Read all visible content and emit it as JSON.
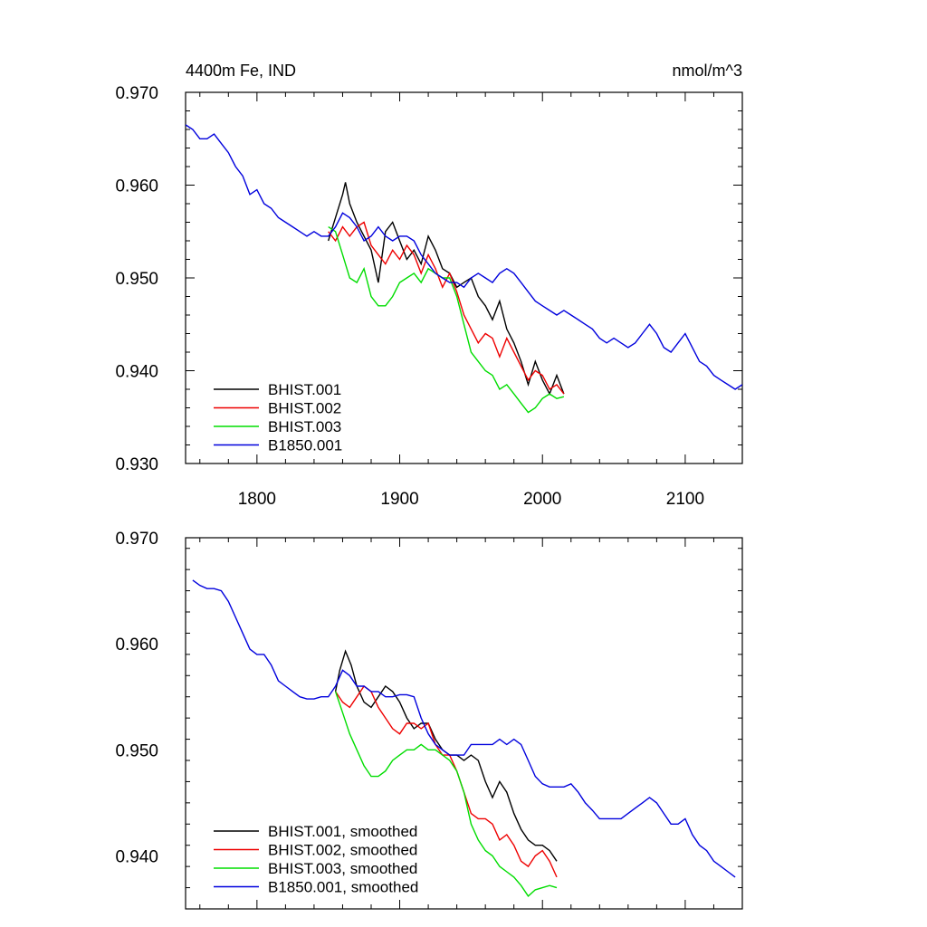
{
  "colors": {
    "black": "#000000",
    "red": "#ee0000",
    "green": "#00dd00",
    "blue": "#0000dd"
  },
  "chart_data": [
    {
      "type": "line",
      "title_left": "4400m Fe, IND",
      "title_right": "nmol/m^3",
      "xlim": [
        1750,
        2140
      ],
      "ylim": [
        0.93,
        0.97
      ],
      "xticks": [
        1800,
        1900,
        2000,
        2100
      ],
      "xtick_labels": [
        "1800",
        "1900",
        "2000",
        "2100"
      ],
      "yticks": [
        0.93,
        0.94,
        0.95,
        0.96,
        0.97
      ],
      "ytick_labels": [
        "0.930",
        "0.940",
        "0.950",
        "0.960",
        "0.970"
      ],
      "legend_position": "bottom-left",
      "series": [
        {
          "name": "BHIST.001",
          "color": "#000000",
          "x": [
            1850,
            1855,
            1860,
            1862,
            1865,
            1870,
            1875,
            1880,
            1885,
            1890,
            1895,
            1900,
            1905,
            1910,
            1915,
            1920,
            1925,
            1930,
            1935,
            1940,
            1945,
            1950,
            1955,
            1960,
            1965,
            1970,
            1975,
            1980,
            1985,
            1990,
            1995,
            2000,
            2005,
            2010,
            2015
          ],
          "y": [
            0.954,
            0.9565,
            0.959,
            0.9603,
            0.958,
            0.956,
            0.9545,
            0.953,
            0.9495,
            0.955,
            0.956,
            0.954,
            0.952,
            0.953,
            0.9515,
            0.9545,
            0.953,
            0.951,
            0.9505,
            0.949,
            0.9495,
            0.95,
            0.948,
            0.947,
            0.9455,
            0.9475,
            0.9445,
            0.943,
            0.941,
            0.9385,
            0.941,
            0.939,
            0.9375,
            0.9395,
            0.9375
          ]
        },
        {
          "name": "BHIST.002",
          "color": "#ee0000",
          "x": [
            1850,
            1855,
            1860,
            1865,
            1870,
            1875,
            1880,
            1885,
            1890,
            1895,
            1900,
            1905,
            1910,
            1915,
            1920,
            1925,
            1930,
            1935,
            1940,
            1945,
            1950,
            1955,
            1960,
            1965,
            1970,
            1975,
            1980,
            1985,
            1990,
            1995,
            2000,
            2005,
            2010,
            2015
          ],
          "y": [
            0.955,
            0.954,
            0.9555,
            0.9545,
            0.9555,
            0.956,
            0.9535,
            0.9525,
            0.9515,
            0.953,
            0.952,
            0.9535,
            0.9525,
            0.9505,
            0.9525,
            0.951,
            0.949,
            0.9505,
            0.9485,
            0.946,
            0.9445,
            0.943,
            0.944,
            0.9435,
            0.9415,
            0.9435,
            0.942,
            0.9405,
            0.939,
            0.94,
            0.9395,
            0.938,
            0.9385,
            0.9375
          ]
        },
        {
          "name": "BHIST.003",
          "color": "#00dd00",
          "x": [
            1850,
            1855,
            1860,
            1865,
            1870,
            1875,
            1880,
            1885,
            1890,
            1895,
            1900,
            1905,
            1910,
            1915,
            1920,
            1925,
            1930,
            1935,
            1940,
            1945,
            1950,
            1955,
            1960,
            1965,
            1970,
            1975,
            1980,
            1985,
            1990,
            1995,
            2000,
            2005,
            2010,
            2015
          ],
          "y": [
            0.9555,
            0.955,
            0.9525,
            0.95,
            0.9495,
            0.951,
            0.948,
            0.947,
            0.947,
            0.948,
            0.9495,
            0.95,
            0.9505,
            0.9495,
            0.951,
            0.9505,
            0.95,
            0.95,
            0.948,
            0.945,
            0.942,
            0.941,
            0.94,
            0.9395,
            0.938,
            0.9385,
            0.9375,
            0.9365,
            0.9355,
            0.936,
            0.937,
            0.9375,
            0.937,
            0.9372
          ]
        },
        {
          "name": "B1850.001",
          "color": "#0000dd",
          "x": [
            1750,
            1755,
            1760,
            1765,
            1770,
            1775,
            1780,
            1785,
            1790,
            1795,
            1800,
            1805,
            1810,
            1815,
            1820,
            1825,
            1830,
            1835,
            1840,
            1845,
            1850,
            1855,
            1860,
            1865,
            1870,
            1875,
            1880,
            1885,
            1890,
            1895,
            1900,
            1905,
            1910,
            1915,
            1920,
            1925,
            1930,
            1935,
            1940,
            1945,
            1950,
            1955,
            1960,
            1965,
            1970,
            1975,
            1980,
            1985,
            1990,
            1995,
            2000,
            2005,
            2010,
            2015,
            2020,
            2025,
            2030,
            2035,
            2040,
            2045,
            2050,
            2055,
            2060,
            2065,
            2070,
            2075,
            2080,
            2085,
            2090,
            2095,
            2100,
            2105,
            2110,
            2115,
            2120,
            2125,
            2130,
            2135,
            2140
          ],
          "y": [
            0.9665,
            0.966,
            0.965,
            0.965,
            0.9655,
            0.9645,
            0.9635,
            0.962,
            0.961,
            0.959,
            0.9595,
            0.958,
            0.9575,
            0.9565,
            0.956,
            0.9555,
            0.955,
            0.9545,
            0.955,
            0.9545,
            0.9545,
            0.9555,
            0.957,
            0.9565,
            0.9555,
            0.954,
            0.9545,
            0.9555,
            0.9545,
            0.954,
            0.9545,
            0.9545,
            0.954,
            0.9525,
            0.9515,
            0.9505,
            0.95,
            0.9495,
            0.9495,
            0.949,
            0.95,
            0.9505,
            0.95,
            0.9495,
            0.9505,
            0.951,
            0.9505,
            0.9495,
            0.9485,
            0.9475,
            0.947,
            0.9465,
            0.946,
            0.9465,
            0.946,
            0.9455,
            0.945,
            0.9445,
            0.9435,
            0.943,
            0.9435,
            0.943,
            0.9425,
            0.943,
            0.944,
            0.945,
            0.944,
            0.9425,
            0.942,
            0.943,
            0.944,
            0.9425,
            0.941,
            0.9405,
            0.9395,
            0.939,
            0.9385,
            0.938,
            0.9385
          ]
        }
      ]
    },
    {
      "type": "line",
      "xlim": [
        1750,
        2140
      ],
      "ylim": [
        0.935,
        0.97
      ],
      "xticks": [
        1800,
        1900,
        2000,
        2100
      ],
      "yticks": [
        0.94,
        0.95,
        0.96,
        0.97
      ],
      "ytick_labels": [
        "0.940",
        "0.950",
        "0.960",
        "0.970"
      ],
      "legend_position": "bottom-left",
      "series": [
        {
          "name": "BHIST.001, smoothed",
          "color": "#000000",
          "x": [
            1855,
            1858,
            1862,
            1866,
            1870,
            1875,
            1880,
            1885,
            1890,
            1895,
            1900,
            1905,
            1910,
            1915,
            1920,
            1925,
            1930,
            1935,
            1940,
            1945,
            1950,
            1955,
            1960,
            1965,
            1970,
            1975,
            1980,
            1985,
            1990,
            1995,
            2000,
            2005,
            2010
          ],
          "y": [
            0.9555,
            0.9575,
            0.9593,
            0.958,
            0.956,
            0.9545,
            0.954,
            0.955,
            0.956,
            0.9555,
            0.9545,
            0.953,
            0.952,
            0.9525,
            0.9525,
            0.951,
            0.95,
            0.9495,
            0.9495,
            0.949,
            0.9495,
            0.949,
            0.947,
            0.9455,
            0.947,
            0.946,
            0.944,
            0.9425,
            0.9415,
            0.941,
            0.941,
            0.9405,
            0.9395
          ]
        },
        {
          "name": "BHIST.002, smoothed",
          "color": "#ee0000",
          "x": [
            1855,
            1860,
            1865,
            1870,
            1875,
            1880,
            1885,
            1890,
            1895,
            1900,
            1905,
            1910,
            1915,
            1920,
            1925,
            1930,
            1935,
            1940,
            1945,
            1950,
            1955,
            1960,
            1965,
            1970,
            1975,
            1980,
            1985,
            1990,
            1995,
            2000,
            2005,
            2010
          ],
          "y": [
            0.9555,
            0.9545,
            0.954,
            0.955,
            0.956,
            0.9555,
            0.954,
            0.953,
            0.952,
            0.9515,
            0.9525,
            0.9525,
            0.952,
            0.9525,
            0.9505,
            0.9495,
            0.9495,
            0.948,
            0.946,
            0.944,
            0.9435,
            0.9435,
            0.943,
            0.9415,
            0.942,
            0.941,
            0.9395,
            0.939,
            0.94,
            0.9405,
            0.9395,
            0.938
          ]
        },
        {
          "name": "BHIST.003, smoothed",
          "color": "#00dd00",
          "x": [
            1855,
            1860,
            1865,
            1870,
            1875,
            1880,
            1885,
            1890,
            1895,
            1900,
            1905,
            1910,
            1915,
            1920,
            1925,
            1930,
            1935,
            1940,
            1945,
            1950,
            1955,
            1960,
            1965,
            1970,
            1975,
            1980,
            1985,
            1990,
            1995,
            2000,
            2005,
            2010
          ],
          "y": [
            0.9555,
            0.9535,
            0.9515,
            0.95,
            0.9485,
            0.9475,
            0.9475,
            0.948,
            0.949,
            0.9495,
            0.95,
            0.95,
            0.9505,
            0.95,
            0.95,
            0.9495,
            0.949,
            0.948,
            0.946,
            0.943,
            0.9415,
            0.9405,
            0.94,
            0.939,
            0.9385,
            0.938,
            0.9372,
            0.9362,
            0.9368,
            0.937,
            0.9372,
            0.937
          ]
        },
        {
          "name": "B1850.001, smoothed",
          "color": "#0000dd",
          "x": [
            1755,
            1760,
            1765,
            1770,
            1775,
            1780,
            1785,
            1790,
            1795,
            1800,
            1805,
            1810,
            1815,
            1820,
            1825,
            1830,
            1835,
            1840,
            1845,
            1850,
            1855,
            1860,
            1865,
            1870,
            1875,
            1880,
            1885,
            1890,
            1895,
            1900,
            1905,
            1910,
            1915,
            1920,
            1925,
            1930,
            1935,
            1940,
            1945,
            1950,
            1955,
            1960,
            1965,
            1970,
            1975,
            1980,
            1985,
            1990,
            1995,
            2000,
            2005,
            2010,
            2015,
            2020,
            2025,
            2030,
            2035,
            2040,
            2045,
            2050,
            2055,
            2060,
            2065,
            2070,
            2075,
            2080,
            2085,
            2090,
            2095,
            2100,
            2105,
            2110,
            2115,
            2120,
            2125,
            2130,
            2135
          ],
          "y": [
            0.966,
            0.9655,
            0.9652,
            0.9652,
            0.965,
            0.964,
            0.9625,
            0.961,
            0.9595,
            0.959,
            0.959,
            0.958,
            0.9565,
            0.956,
            0.9555,
            0.955,
            0.9548,
            0.9548,
            0.955,
            0.955,
            0.956,
            0.9575,
            0.957,
            0.956,
            0.956,
            0.9555,
            0.9555,
            0.955,
            0.955,
            0.9552,
            0.9552,
            0.955,
            0.953,
            0.9515,
            0.9505,
            0.95,
            0.9495,
            0.9495,
            0.9495,
            0.9505,
            0.9505,
            0.9505,
            0.9505,
            0.951,
            0.9505,
            0.951,
            0.9505,
            0.949,
            0.9475,
            0.9468,
            0.9465,
            0.9465,
            0.9465,
            0.9468,
            0.946,
            0.945,
            0.9443,
            0.9435,
            0.9435,
            0.9435,
            0.9435,
            0.944,
            0.9445,
            0.945,
            0.9455,
            0.945,
            0.944,
            0.943,
            0.943,
            0.9435,
            0.942,
            0.941,
            0.9405,
            0.9395,
            0.939,
            0.9385,
            0.938
          ]
        }
      ]
    }
  ]
}
